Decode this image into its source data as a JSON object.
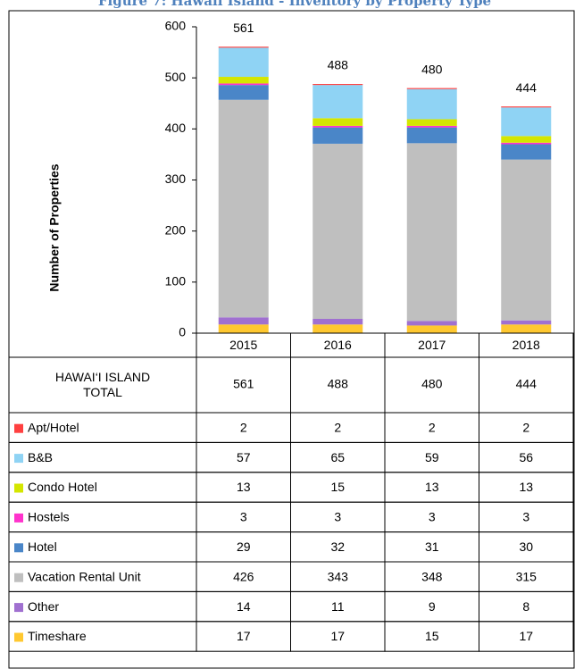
{
  "chart_data": {
    "type": "stacked_bar",
    "title": "Figure 7: Hawaii Island - Inventory by Property Type",
    "y_label": "Number of Properties",
    "categories": [
      "2015",
      "2016",
      "2017",
      "2018"
    ],
    "ylim": [
      0,
      600
    ],
    "yticks": [
      0,
      100,
      200,
      300,
      400,
      500,
      600
    ],
    "total_label": "HAWAI‘I ISLAND TOTAL",
    "totals": [
      561,
      488,
      480,
      444
    ],
    "series": [
      {
        "name": "Apt/Hotel",
        "color": "#ff4040",
        "values": [
          2,
          2,
          2,
          2
        ]
      },
      {
        "name": "B&B",
        "color": "#8fd3f4",
        "values": [
          57,
          65,
          59,
          56
        ]
      },
      {
        "name": "Condo Hotel",
        "color": "#d4e600",
        "values": [
          13,
          15,
          13,
          13
        ]
      },
      {
        "name": "Hostels",
        "color": "#ff33cc",
        "values": [
          3,
          3,
          3,
          3
        ]
      },
      {
        "name": "Hotel",
        "color": "#4a86c8",
        "values": [
          29,
          32,
          31,
          30
        ]
      },
      {
        "name": "Vacation Rental Unit",
        "color": "#bfbfbf",
        "values": [
          426,
          343,
          348,
          315
        ]
      },
      {
        "name": "Other",
        "color": "#a070d0",
        "values": [
          14,
          11,
          9,
          8
        ]
      },
      {
        "name": "Timeshare",
        "color": "#ffc830",
        "values": [
          17,
          17,
          15,
          17
        ]
      }
    ]
  }
}
